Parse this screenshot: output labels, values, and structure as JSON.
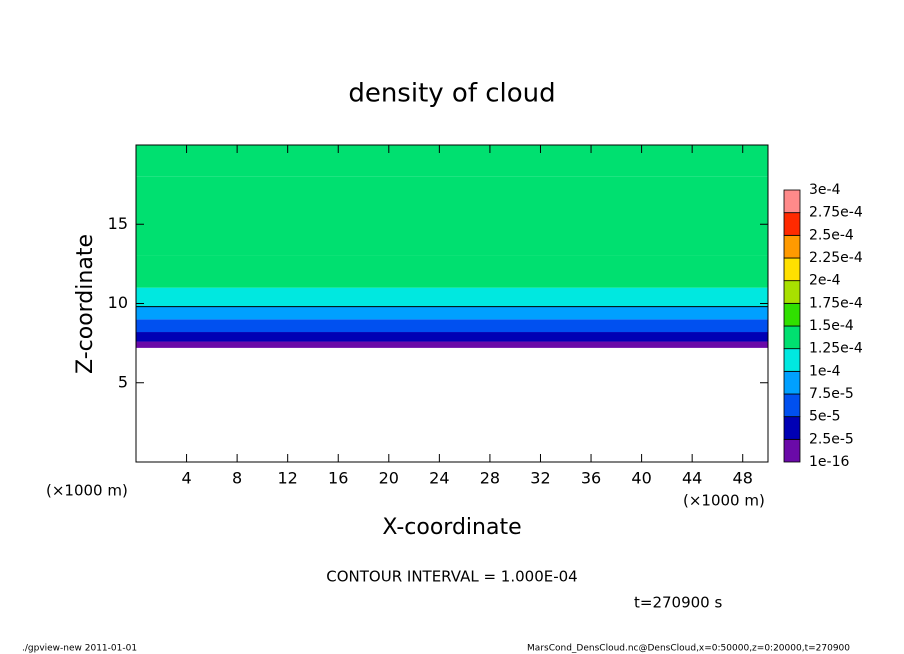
{
  "chart_data": {
    "type": "contour",
    "title": "density of cloud",
    "x_label": "X-coordinate",
    "y_label": "Z-coordinate",
    "x_unit": "(×1000 m)",
    "xlim": [
      0,
      50
    ],
    "ylim": [
      0,
      20
    ],
    "xticks": [
      4,
      8,
      12,
      16,
      20,
      24,
      28,
      32,
      36,
      40,
      44,
      48
    ],
    "yticks": [
      5,
      10,
      15
    ],
    "z": [
      7.2,
      7.6,
      8.2,
      9.0,
      9.8,
      11,
      13,
      18
    ],
    "values": [
      1e-05,
      3.5e-05,
      6e-05,
      8.5e-05,
      0.000105,
      0.00013,
      0.00014,
      0.000135
    ],
    "contour_interval": 0.0001,
    "contour_label": "CONTOUR INTERVAL = 1.000E-04",
    "time_label": "t=270900 s",
    "levels": [
      {
        "value": 1e-16,
        "label": "1e-16"
      },
      {
        "value": 2.5e-05,
        "label": "2.5e-5"
      },
      {
        "value": 5e-05,
        "label": "5e-5"
      },
      {
        "value": 7.5e-05,
        "label": "7.5e-5"
      },
      {
        "value": 0.0001,
        "label": "1e-4"
      },
      {
        "value": 0.000125,
        "label": "1.25e-4"
      },
      {
        "value": 0.00015,
        "label": "1.5e-4"
      },
      {
        "value": 0.000175,
        "label": "1.75e-4"
      },
      {
        "value": 0.0002,
        "label": "2e-4"
      },
      {
        "value": 0.000225,
        "label": "2.25e-4"
      },
      {
        "value": 0.00025,
        "label": "2.5e-4"
      },
      {
        "value": 0.000275,
        "label": "2.75e-4"
      },
      {
        "value": 0.0003,
        "label": "3e-4"
      }
    ],
    "level_colors": [
      "#6a0aa8",
      "#0000b4",
      "#0050f0",
      "#00a0ff",
      "#00e8e0",
      "#00e070",
      "#30e000",
      "#a8e000",
      "#ffe000",
      "#ff9a00",
      "#ff2a00",
      "#ff8a8a"
    ],
    "footer_left": "./gpview-new  2011-01-01",
    "footer_right": "MarsCond_DensCloud.nc@DensCloud,x=0:50000,z=0:20000,t=270900"
  }
}
